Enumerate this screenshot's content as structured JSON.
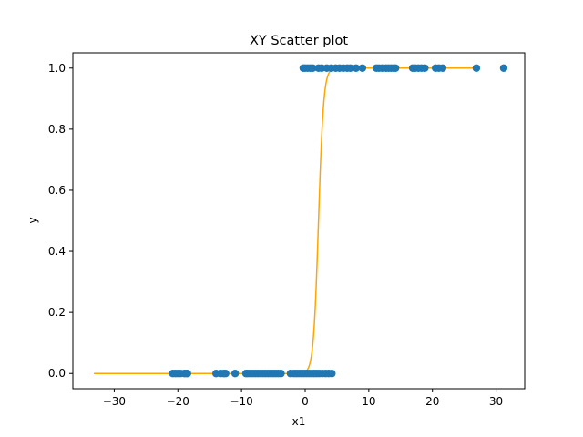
{
  "chart_data": {
    "type": "scatter",
    "title": "XY Scatter plot",
    "xlabel": "x1",
    "ylabel": "y",
    "xlim": [
      -36.5,
      34.5
    ],
    "ylim": [
      -0.05,
      1.05
    ],
    "xticks": [
      -30,
      -20,
      -10,
      0,
      10,
      20,
      30
    ],
    "yticks": [
      0.0,
      0.2,
      0.4,
      0.6,
      0.8,
      1.0
    ],
    "xtick_labels": [
      "−30",
      "−20",
      "−10",
      "0",
      "10",
      "20",
      "30"
    ],
    "ytick_labels": [
      "0.0",
      "0.2",
      "0.4",
      "0.6",
      "0.8",
      "1.0"
    ],
    "grid": false,
    "series": [
      {
        "kind": "scatter",
        "color": "#1f77b4",
        "points": [
          [
            -20.8,
            0
          ],
          [
            -20.4,
            0
          ],
          [
            -20.0,
            0
          ],
          [
            -19.6,
            0
          ],
          [
            -19.0,
            0
          ],
          [
            -18.7,
            0
          ],
          [
            -18.5,
            0
          ],
          [
            -14.0,
            0
          ],
          [
            -13.3,
            0
          ],
          [
            -12.8,
            0
          ],
          [
            -12.5,
            0
          ],
          [
            -11.0,
            0
          ],
          [
            -9.3,
            0
          ],
          [
            -9.0,
            0
          ],
          [
            -8.6,
            0
          ],
          [
            -8.2,
            0
          ],
          [
            -7.8,
            0
          ],
          [
            -7.4,
            0
          ],
          [
            -7.0,
            0
          ],
          [
            -6.6,
            0
          ],
          [
            -6.2,
            0
          ],
          [
            -5.8,
            0
          ],
          [
            -5.4,
            0
          ],
          [
            -5.0,
            0
          ],
          [
            -4.6,
            0
          ],
          [
            -4.2,
            0
          ],
          [
            -3.8,
            0
          ],
          [
            -2.3,
            0
          ],
          [
            -1.8,
            0
          ],
          [
            -1.4,
            0
          ],
          [
            -1.0,
            0
          ],
          [
            -0.6,
            0
          ],
          [
            -0.2,
            0
          ],
          [
            0.2,
            0
          ],
          [
            0.6,
            0
          ],
          [
            1.0,
            0
          ],
          [
            1.4,
            0
          ],
          [
            1.8,
            0
          ],
          [
            2.2,
            0
          ],
          [
            2.7,
            0
          ],
          [
            3.2,
            0
          ],
          [
            3.7,
            0
          ],
          [
            4.2,
            0
          ],
          [
            -0.3,
            1
          ],
          [
            0.0,
            1
          ],
          [
            0.4,
            1
          ],
          [
            0.8,
            1
          ],
          [
            1.2,
            1
          ],
          [
            2.1,
            1
          ],
          [
            2.6,
            1
          ],
          [
            3.4,
            1
          ],
          [
            4.1,
            1
          ],
          [
            4.8,
            1
          ],
          [
            5.4,
            1
          ],
          [
            6.0,
            1
          ],
          [
            6.6,
            1
          ],
          [
            7.1,
            1
          ],
          [
            8.0,
            1
          ],
          [
            9.0,
            1
          ],
          [
            11.2,
            1
          ],
          [
            11.6,
            1
          ],
          [
            12.1,
            1
          ],
          [
            12.7,
            1
          ],
          [
            13.1,
            1
          ],
          [
            13.5,
            1
          ],
          [
            13.9,
            1
          ],
          [
            14.2,
            1
          ],
          [
            16.9,
            1
          ],
          [
            17.3,
            1
          ],
          [
            17.8,
            1
          ],
          [
            18.3,
            1
          ],
          [
            18.8,
            1
          ],
          [
            20.5,
            1
          ],
          [
            21.0,
            1
          ],
          [
            21.6,
            1
          ],
          [
            26.9,
            1
          ],
          [
            31.2,
            1
          ]
        ]
      },
      {
        "kind": "line",
        "color": "#ffa500",
        "curve": "logistic",
        "x_start": -33.2,
        "x_end": 26.9,
        "midpoint": 2.1,
        "slope": 2.5
      }
    ]
  }
}
